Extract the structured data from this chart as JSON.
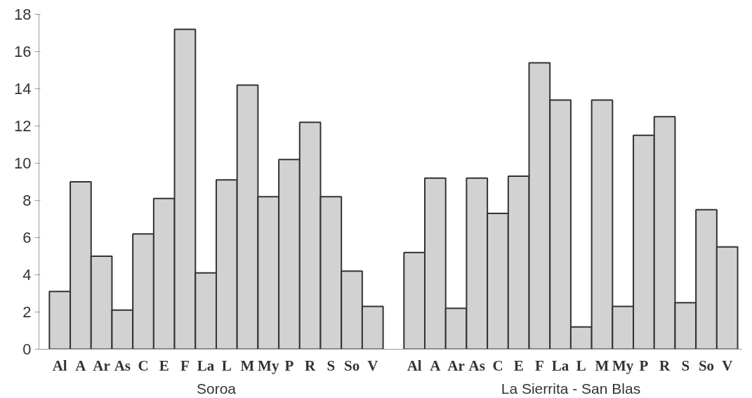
{
  "chart_data": {
    "type": "bar",
    "categories": [
      "Al",
      "A",
      "Ar",
      "As",
      "C",
      "E",
      "F",
      "La",
      "L",
      "M",
      "My",
      "P",
      "R",
      "S",
      "So",
      "V",
      null,
      "Al",
      "A",
      "Ar",
      "As",
      "C",
      "E",
      "F",
      "La",
      "L",
      "M",
      "My",
      "P",
      "R",
      "S",
      "So",
      "V"
    ],
    "values": [
      3.1,
      9.0,
      5.0,
      2.1,
      6.2,
      8.1,
      17.2,
      4.1,
      9.1,
      14.2,
      8.2,
      10.2,
      12.2,
      8.2,
      4.2,
      2.3,
      null,
      5.2,
      9.2,
      2.2,
      9.2,
      7.3,
      9.3,
      15.4,
      13.4,
      1.2,
      13.4,
      2.3,
      11.5,
      12.5,
      2.5,
      7.5,
      5.5
    ],
    "color": "#d2d2d2",
    "ylim": [
      0,
      18
    ],
    "yticks": [
      0,
      2,
      4,
      6,
      8,
      10,
      12,
      14,
      16,
      18
    ],
    "grid": false,
    "annotations": [
      "Soroa",
      "La Sierrita - San Blas"
    ]
  }
}
